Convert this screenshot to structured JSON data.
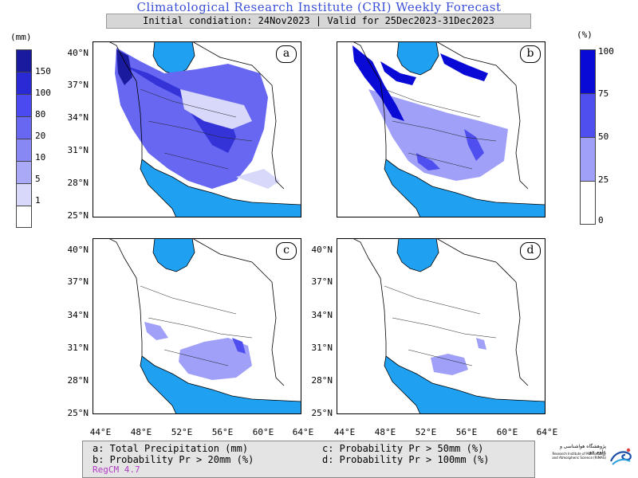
{
  "header": {
    "title": "Climatological Research Institute (CRI) Weekly Forecast",
    "subtitle": "Initial condiation: 24Nov2023 | Valid for 25Dec2023-31Dec2023"
  },
  "panels": [
    {
      "id": "a",
      "label": "a"
    },
    {
      "id": "b",
      "label": "b"
    },
    {
      "id": "c",
      "label": "c"
    },
    {
      "id": "d",
      "label": "d"
    }
  ],
  "axes": {
    "lat_labels": [
      "40°N",
      "37°N",
      "34°N",
      "31°N",
      "28°N",
      "25°N"
    ],
    "lon_labels": [
      "44°E",
      "48°E",
      "52°E",
      "56°E",
      "60°E",
      "64°E"
    ]
  },
  "legend_left": {
    "unit": "(mm)",
    "ticks": [
      "150",
      "100",
      "80",
      "20",
      "10",
      "5",
      "1"
    ],
    "colors": [
      "#1a1a9e",
      "#2a2ad4",
      "#4a4af0",
      "#6767f2",
      "#8888f4",
      "#a9a9f7",
      "#d8d8fb",
      "#ffffff"
    ]
  },
  "legend_right": {
    "unit": "(%)",
    "ticks": [
      "100",
      "75",
      "50",
      "25",
      "0"
    ],
    "colors": [
      "#0a0ad6",
      "#4f4ff0",
      "#a0a0f8",
      "#ffffff"
    ]
  },
  "info": {
    "a": "a: Total Precipitation (mm)",
    "b": "b: Probability Pr > 20mm (%)",
    "c": "c: Probability Pr > 50mm (%)",
    "d": "d: Probability Pr > 100mm (%)",
    "model": "RegCM 4.7"
  },
  "logo": {
    "name_fa": "پژوهشگاه هواشناسی و علوم جو",
    "name_en": "Research Institute of Meteorology and Atmospheric Science (RIMAS)"
  },
  "colors": {
    "title": "#3a4fd8",
    "water": "#1fa0f0",
    "model_text": "#b23cc4"
  }
}
